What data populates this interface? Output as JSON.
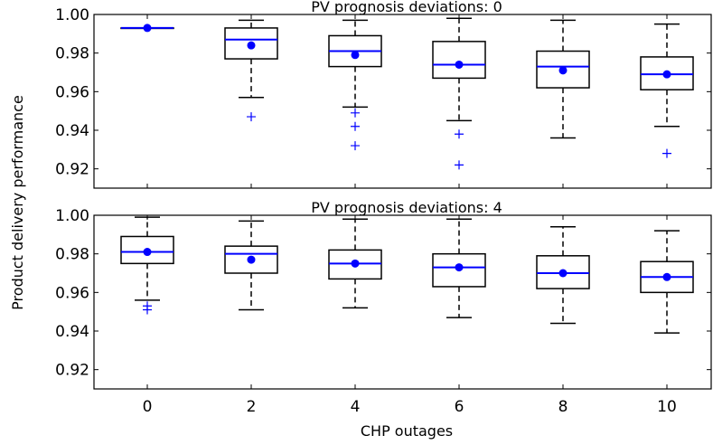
{
  "figure": {
    "ylabel": "Product delivery performance",
    "xlabel": "CHP outages"
  },
  "chart_data": [
    {
      "type": "box",
      "title": "PV prognosis deviations: 0",
      "categories": [
        "0",
        "2",
        "4",
        "6",
        "8",
        "10"
      ],
      "ylim": [
        0.91,
        1.0
      ],
      "yticks": [
        0.92,
        0.94,
        0.96,
        0.98,
        1.0
      ],
      "ytick_labels": [
        "0.92",
        "0.94",
        "0.96",
        "0.98",
        "1.00"
      ],
      "grid": false,
      "boxes": [
        {
          "category": "0",
          "whisker_low": 0.993,
          "q1": 0.993,
          "median": 0.993,
          "q3": 0.993,
          "whisker_high": 0.993,
          "mean": 0.993,
          "outliers": []
        },
        {
          "category": "2",
          "whisker_low": 0.957,
          "q1": 0.977,
          "median": 0.987,
          "q3": 0.993,
          "whisker_high": 0.997,
          "mean": 0.984,
          "outliers": [
            0.947
          ]
        },
        {
          "category": "4",
          "whisker_low": 0.952,
          "q1": 0.973,
          "median": 0.981,
          "q3": 0.989,
          "whisker_high": 0.997,
          "mean": 0.979,
          "outliers": [
            0.949,
            0.942,
            0.932
          ]
        },
        {
          "category": "6",
          "whisker_low": 0.945,
          "q1": 0.967,
          "median": 0.974,
          "q3": 0.986,
          "whisker_high": 0.998,
          "mean": 0.974,
          "outliers": [
            0.938,
            0.922
          ]
        },
        {
          "category": "8",
          "whisker_low": 0.936,
          "q1": 0.962,
          "median": 0.973,
          "q3": 0.981,
          "whisker_high": 0.997,
          "mean": 0.971,
          "outliers": []
        },
        {
          "category": "10",
          "whisker_low": 0.942,
          "q1": 0.961,
          "median": 0.969,
          "q3": 0.978,
          "whisker_high": 0.995,
          "mean": 0.969,
          "outliers": [
            0.928
          ]
        }
      ]
    },
    {
      "type": "box",
      "title": "PV prognosis deviations: 4",
      "categories": [
        "0",
        "2",
        "4",
        "6",
        "8",
        "10"
      ],
      "ylim": [
        0.91,
        1.0
      ],
      "yticks": [
        0.92,
        0.94,
        0.96,
        0.98,
        1.0
      ],
      "ytick_labels": [
        "0.92",
        "0.94",
        "0.96",
        "0.98",
        "1.00"
      ],
      "grid": false,
      "boxes": [
        {
          "category": "0",
          "whisker_low": 0.956,
          "q1": 0.975,
          "median": 0.981,
          "q3": 0.989,
          "whisker_high": 0.999,
          "mean": 0.981,
          "outliers": [
            0.953,
            0.951
          ]
        },
        {
          "category": "2",
          "whisker_low": 0.951,
          "q1": 0.97,
          "median": 0.98,
          "q3": 0.984,
          "whisker_high": 0.997,
          "mean": 0.977,
          "outliers": []
        },
        {
          "category": "4",
          "whisker_low": 0.952,
          "q1": 0.967,
          "median": 0.975,
          "q3": 0.982,
          "whisker_high": 0.998,
          "mean": 0.975,
          "outliers": []
        },
        {
          "category": "6",
          "whisker_low": 0.947,
          "q1": 0.963,
          "median": 0.973,
          "q3": 0.98,
          "whisker_high": 0.998,
          "mean": 0.973,
          "outliers": []
        },
        {
          "category": "8",
          "whisker_low": 0.944,
          "q1": 0.962,
          "median": 0.97,
          "q3": 0.979,
          "whisker_high": 0.994,
          "mean": 0.97,
          "outliers": []
        },
        {
          "category": "10",
          "whisker_low": 0.939,
          "q1": 0.96,
          "median": 0.968,
          "q3": 0.976,
          "whisker_high": 0.992,
          "mean": 0.968,
          "outliers": []
        }
      ]
    }
  ],
  "colors": {
    "box": "#000000",
    "median": "#0000ff",
    "mean": "#0000ff",
    "outlier": "#0000ff"
  }
}
